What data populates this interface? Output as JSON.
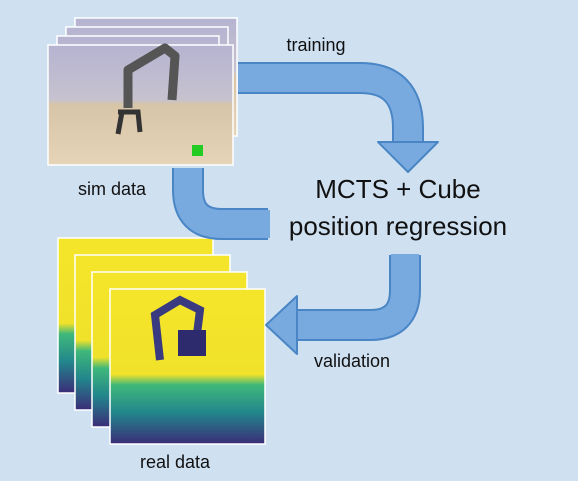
{
  "labels": {
    "training": "training",
    "sim": "sim data",
    "center_line1": "MCTS + Cube",
    "center_line2": "position regression",
    "validation": "validation",
    "real": "real data"
  }
}
